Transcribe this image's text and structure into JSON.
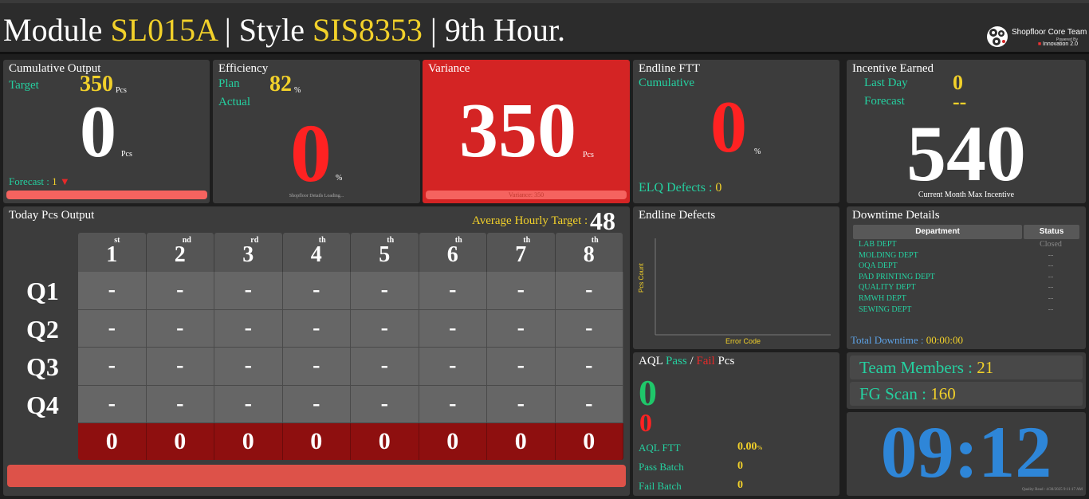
{
  "header": {
    "module_prefix": "Module",
    "module": "SL015A",
    "style_prefix": " | Style",
    "style": "SIS8353",
    "hour_label": " | 9th Hour.",
    "brand": "Shopfloor Core Team",
    "powered_by": "Powered By",
    "innovation": "Innovation 2.0"
  },
  "cumulative": {
    "title": "Cumulative Output",
    "target_label": "Target",
    "target": "350",
    "target_unit": "Pcs",
    "value": "0",
    "unit": "Pcs",
    "forecast_label": "Forecast :",
    "forecast": "1",
    "forecast_arrow": "▼"
  },
  "efficiency": {
    "title": "Efficiency",
    "plan_label": "Plan",
    "plan": "82",
    "plan_unit": "%",
    "actual_label": "Actual",
    "value": "0",
    "unit": "%",
    "footer": "Shopfloor Details Loading..."
  },
  "variance": {
    "title": "Variance",
    "value": "350",
    "unit": "Pcs",
    "bar_text": "Variance: 350"
  },
  "ftt": {
    "title": "Endline FTT",
    "sub": "Cumulative",
    "value": "0",
    "unit": "%",
    "elq_label": "ELQ Defects :",
    "elq": "0"
  },
  "incentive": {
    "title": "Incentive Earned",
    "last_day_label": "Last Day",
    "last_day": "0",
    "forecast_label": "Forecast",
    "forecast": "--",
    "value": "540",
    "caption": "Current Month Max Incentive"
  },
  "today": {
    "title": "Today Pcs Output",
    "avg_label": "Average Hourly Target :",
    "avg": "48",
    "hours": [
      {
        "n": "1",
        "sfx": "st"
      },
      {
        "n": "2",
        "sfx": "nd"
      },
      {
        "n": "3",
        "sfx": "rd"
      },
      {
        "n": "4",
        "sfx": "th"
      },
      {
        "n": "5",
        "sfx": "th"
      },
      {
        "n": "6",
        "sfx": "th"
      },
      {
        "n": "7",
        "sfx": "th"
      },
      {
        "n": "8",
        "sfx": "th"
      }
    ],
    "quarters": [
      "Q1",
      "Q2",
      "Q3",
      "Q4"
    ],
    "cell": "-",
    "totals": [
      "0",
      "0",
      "0",
      "0",
      "0",
      "0",
      "0",
      "0"
    ]
  },
  "defects": {
    "title": "Endline Defects",
    "ylabel": "Pcs Count",
    "xlabel": "Error Code"
  },
  "aql": {
    "title_prefix": "AQL",
    "pass_word": "Pass",
    "slash": "/",
    "fail_word": "Fail",
    "title_suffix": "Pcs",
    "pass": "0",
    "fail": "0",
    "ftt_label": "AQL FTT",
    "ftt": "0.00",
    "ftt_unit": "%",
    "pass_batch_label": "Pass Batch",
    "pass_batch": "0",
    "fail_batch_label": "Fail Batch",
    "fail_batch": "0"
  },
  "downtime": {
    "title": "Downtime Details",
    "col_dept": "Department",
    "col_status": "Status",
    "rows": [
      {
        "dept": "LAB DEPT",
        "status": "Closed"
      },
      {
        "dept": "MOLDING DEPT",
        "status": "--"
      },
      {
        "dept": "OQA DEPT",
        "status": "--"
      },
      {
        "dept": "PAD PRINTING DEPT",
        "status": "--"
      },
      {
        "dept": "QUALITY DEPT",
        "status": "--"
      },
      {
        "dept": "RMWH DEPT",
        "status": "--"
      },
      {
        "dept": "SEWING DEPT",
        "status": "--"
      }
    ],
    "total_label": "Total Downtime :",
    "total": "00:00:00"
  },
  "team": {
    "members_label": "Team Members :",
    "members": "21",
    "fg_label": "FG Scan :",
    "fg": "160"
  },
  "clock": {
    "time": "09:12",
    "footer": "Quality Read : 4/30/2025 9:11:17 AM"
  },
  "colors": {
    "accent_yellow": "#f2d12a",
    "accent_teal": "#25d0a0",
    "alert_red": "#e62929",
    "variance_bg": "#d42424",
    "clock_blue": "#2e86d8"
  }
}
